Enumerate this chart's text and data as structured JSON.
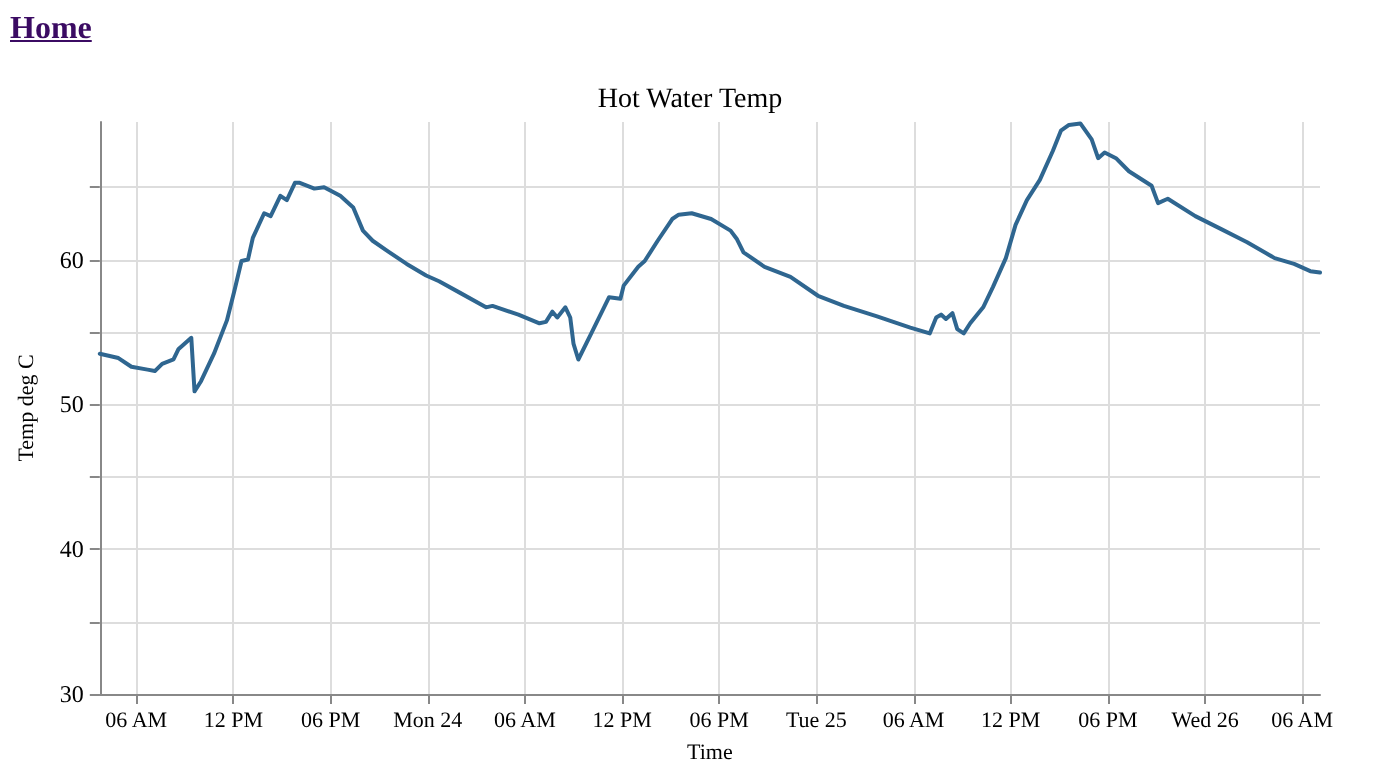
{
  "chart_data": {
    "type": "line",
    "title": "Hot Water Temp",
    "xlabel": "Time",
    "ylabel": "Temp deg C",
    "annotations": [
      "Home"
    ],
    "x": [
      "--07-23T03:45",
      "--07-23T04:54",
      "--07-23T05:42",
      "--07-23T06:42",
      "--07-23T07:09",
      "--07-23T07:36",
      "--07-23T08:18",
      "--07-23T08:36",
      "--07-23T09:24",
      "--07-23T09:36",
      "--07-23T10:00",
      "--07-23T10:48",
      "--07-23T11:36",
      "--07-23T12:03",
      "--07-23T12:30",
      "--07-23T12:54",
      "--07-23T13:12",
      "--07-23T13:54",
      "--07-23T14:18",
      "--07-23T14:54",
      "--07-23T15:18",
      "--07-23T15:48",
      "--07-23T16:06",
      "--07-23T17:00",
      "--07-23T17:36",
      "--07-23T18:36",
      "--07-23T19:24",
      "--07-23T20:00",
      "--07-23T20:36",
      "--07-23T21:30",
      "--07-23T22:42",
      "--07-23T23:54",
      "--07-24T00:42",
      "--07-24T02:00",
      "--07-24T03:36",
      "--07-24T04:00",
      "--07-24T05:36",
      "--07-24T06:54",
      "--07-24T07:18",
      "--07-24T07:42",
      "--07-24T08:00",
      "--07-24T08:30",
      "--07-24T08:48",
      "--07-24T09:00",
      "--07-24T09:18",
      "--07-24T10:06",
      "--07-24T11:12",
      "--07-24T11:54",
      "--07-24T12:06",
      "--07-24T13:00",
      "--07-24T13:24",
      "--07-24T14:12",
      "--07-24T15:06",
      "--07-24T15:30",
      "--07-24T16:18",
      "--07-24T17:30",
      "--07-24T18:42",
      "--07-24T19:06",
      "--07-24T19:30",
      "--07-24T20:48",
      "--07-24T22:24",
      "--07-25T00:06",
      "--07-25T01:42",
      "--07-25T03:42",
      "--07-25T05:48",
      "--07-25T07:00",
      "--07-25T07:24",
      "--07-25T07:42",
      "--07-25T08:00",
      "--07-25T08:24",
      "--07-25T08:42",
      "--07-25T09:06",
      "--07-25T09:30",
      "--07-25T10:18",
      "--07-25T10:54",
      "--07-25T11:42",
      "--07-25T12:18",
      "--07-25T13:00",
      "--07-25T13:48",
      "--07-25T14:36",
      "--07-25T15:06",
      "--07-25T15:36",
      "--07-25T16:18",
      "--07-25T17:00",
      "--07-25T17:24",
      "--07-25T17:48",
      "--07-25T18:30",
      "--07-25T19:18",
      "--07-25T20:42",
      "--07-25T21:06",
      "--07-25T21:42",
      "--07-25T23:24",
      "--07-26T01:00",
      "--07-26T02:36",
      "--07-26T04:18",
      "--07-26T05:30",
      "--07-26T06:30",
      "--07-26T07:06"
    ],
    "series": [
      {
        "color": "#2f6690",
        "values": [
          53.5,
          53.2,
          52.6,
          52.4,
          52.3,
          52.8,
          53.1,
          53.8,
          54.6,
          50.9,
          51.6,
          53.5,
          55.8,
          57.8,
          59.9,
          60.0,
          61.5,
          63.2,
          63.0,
          64.4,
          64.1,
          65.3,
          65.3,
          64.9,
          65.0,
          64.4,
          63.6,
          62.0,
          61.3,
          60.6,
          59.7,
          58.9,
          58.5,
          57.7,
          56.7,
          56.8,
          56.2,
          55.6,
          55.7,
          56.4,
          56.0,
          56.7,
          56.0,
          54.2,
          53.1,
          54.9,
          57.4,
          57.3,
          58.2,
          59.5,
          59.9,
          61.3,
          62.8,
          63.1,
          63.2,
          62.8,
          62.0,
          61.4,
          60.5,
          59.5,
          58.8,
          57.5,
          56.8,
          56.1,
          55.3,
          54.9,
          56.0,
          56.2,
          55.9,
          56.3,
          55.2,
          54.9,
          55.6,
          56.7,
          58.1,
          60.1,
          62.4,
          64.1,
          65.5,
          67.5,
          68.9,
          69.3,
          69.4,
          68.3,
          67.0,
          67.4,
          67.0,
          66.1,
          65.1,
          63.9,
          64.2,
          63.0,
          62.1,
          61.2,
          60.1,
          59.7,
          59.2,
          59.1
        ]
      }
    ],
    "xlim": [
      "--07-23T03:45",
      "--07-26T07:06"
    ],
    "xticks": [
      {
        "value": "--07-23T06:00",
        "label": "06 AM"
      },
      {
        "value": "--07-23T12:00",
        "label": "12 PM"
      },
      {
        "value": "--07-23T18:00",
        "label": "06 PM"
      },
      {
        "value": "--07-24T00:00",
        "label": "Mon 24"
      },
      {
        "value": "--07-24T06:00",
        "label": "06 AM"
      },
      {
        "value": "--07-24T12:00",
        "label": "12 PM"
      },
      {
        "value": "--07-24T18:00",
        "label": "06 PM"
      },
      {
        "value": "--07-25T00:00",
        "label": "Tue 25"
      },
      {
        "value": "--07-25T06:00",
        "label": "06 AM"
      },
      {
        "value": "--07-25T12:00",
        "label": "12 PM"
      },
      {
        "value": "--07-25T18:00",
        "label": "06 PM"
      },
      {
        "value": "--07-26T00:00",
        "label": "Wed 26"
      },
      {
        "value": "--07-26T06:00",
        "label": "06 AM"
      }
    ],
    "ylim": [
      30,
      69.5
    ],
    "yticks": [
      30,
      {
        "value": 35,
        "label": null
      },
      40,
      {
        "value": 45,
        "label": null
      },
      50,
      {
        "value": 55,
        "label": null
      },
      60,
      {
        "value": 65,
        "label": null
      }
    ],
    "grid": true,
    "marker": "none",
    "line_style": "solid"
  }
}
